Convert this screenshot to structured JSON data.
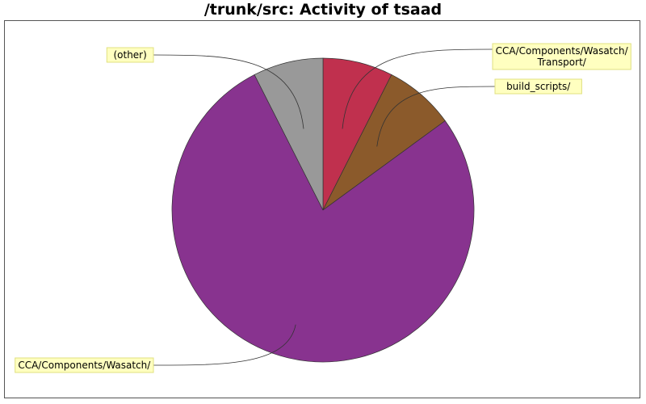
{
  "chart_data": {
    "type": "pie",
    "title": "/trunk/src: Activity of tsaad",
    "slices": [
      {
        "label": [
          "CCA/Components/Wasatch/",
          "Transport/"
        ],
        "value": 7.5,
        "color": "#c0304e"
      },
      {
        "label": [
          "build_scripts/"
        ],
        "value": 7.5,
        "color": "#8b5a2b"
      },
      {
        "label": [
          "CCA/Components/Wasatch/"
        ],
        "value": 77.5,
        "color": "#88338f"
      },
      {
        "label": [
          "(other)"
        ],
        "value": 7.5,
        "color": "#999999"
      }
    ],
    "start_angle_deg": 0,
    "direction": "clockwise",
    "label_box_color": "#ffffc0",
    "label_box_border": "#e0e080"
  }
}
